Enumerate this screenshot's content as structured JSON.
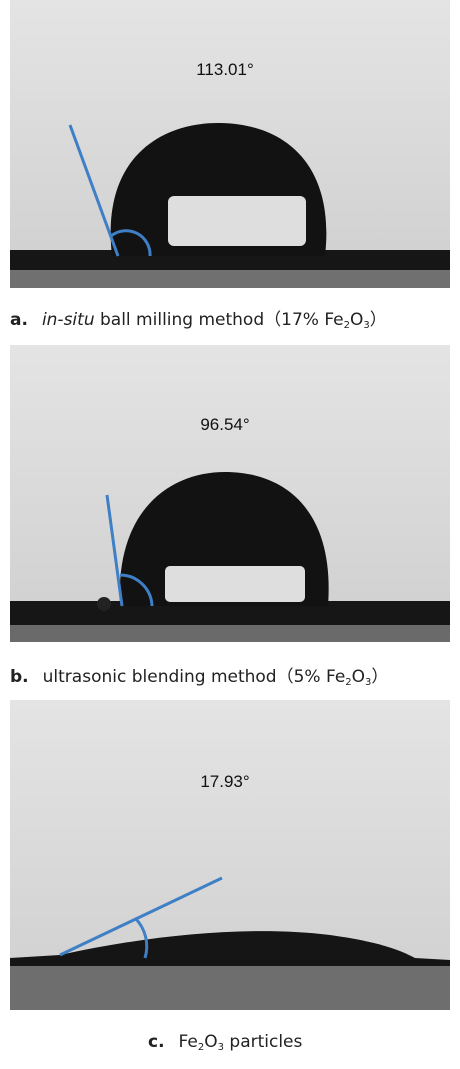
{
  "panels": [
    {
      "angle": "113.01°",
      "caption": [
        "a.",
        "in-situ",
        " ball milling method（17% Fe",
        "2",
        "O",
        "3",
        "）"
      ]
    },
    {
      "angle": "96.54°",
      "caption": [
        "b.",
        "ultrasonic blending method（5% Fe",
        "2",
        "O",
        "3",
        "）"
      ]
    },
    {
      "angle": "17.93°",
      "caption": [
        "c.",
        "Fe",
        "2",
        "O",
        "3",
        " particles"
      ]
    }
  ]
}
